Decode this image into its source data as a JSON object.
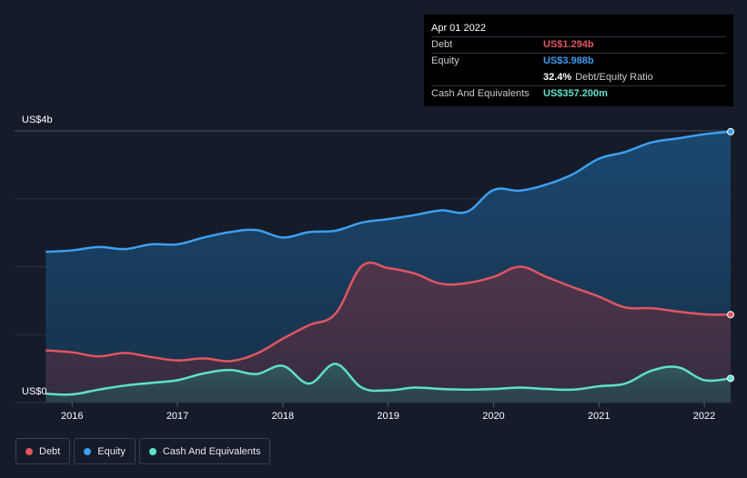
{
  "tooltip": {
    "date": "Apr 01 2022",
    "rows": [
      {
        "label": "Debt",
        "value": "US$1.294b",
        "color": "#e05561"
      },
      {
        "label": "Equity",
        "value": "US$3.988b",
        "color": "#3d9ff0"
      },
      {
        "label": "",
        "value": "32.4%",
        "extra": "Debt/Equity Ratio",
        "color": "#ffffff"
      },
      {
        "label": "Cash And Equivalents",
        "value": "US$357.200m",
        "color": "#5fe0cc"
      }
    ]
  },
  "legend": [
    {
      "label": "Debt",
      "color": "#e05561"
    },
    {
      "label": "Equity",
      "color": "#3d9ff0"
    },
    {
      "label": "Cash And Equivalents",
      "color": "#5fe0cc"
    }
  ],
  "chart_data": {
    "type": "area",
    "y_unit": "US$ billions",
    "ylim": [
      0,
      4
    ],
    "y_tick_labels": [
      {
        "value": 4,
        "label": "US$4b"
      },
      {
        "value": 0,
        "label": "US$0"
      }
    ],
    "x_ticks": [
      2016,
      2017,
      2018,
      2019,
      2020,
      2021,
      2022
    ],
    "xlim": [
      2015.73,
      2022.25
    ],
    "grid": true,
    "series": [
      {
        "name": "Equity",
        "color": "#3d9ff0",
        "points": [
          [
            2015.75,
            2.22
          ],
          [
            2016.0,
            2.24
          ],
          [
            2016.25,
            2.29
          ],
          [
            2016.5,
            2.26
          ],
          [
            2016.75,
            2.33
          ],
          [
            2017.0,
            2.33
          ],
          [
            2017.25,
            2.43
          ],
          [
            2017.5,
            2.51
          ],
          [
            2017.75,
            2.54
          ],
          [
            2018.0,
            2.43
          ],
          [
            2018.25,
            2.51
          ],
          [
            2018.5,
            2.53
          ],
          [
            2018.75,
            2.65
          ],
          [
            2019.0,
            2.7
          ],
          [
            2019.25,
            2.76
          ],
          [
            2019.5,
            2.83
          ],
          [
            2019.75,
            2.81
          ],
          [
            2020.0,
            3.13
          ],
          [
            2020.25,
            3.12
          ],
          [
            2020.5,
            3.21
          ],
          [
            2020.75,
            3.36
          ],
          [
            2021.0,
            3.59
          ],
          [
            2021.25,
            3.69
          ],
          [
            2021.5,
            3.83
          ],
          [
            2021.75,
            3.89
          ],
          [
            2022.0,
            3.95
          ],
          [
            2022.25,
            3.988
          ]
        ]
      },
      {
        "name": "Debt",
        "color": "#e05561",
        "points": [
          [
            2015.75,
            0.77
          ],
          [
            2016.0,
            0.74
          ],
          [
            2016.25,
            0.68
          ],
          [
            2016.5,
            0.73
          ],
          [
            2016.75,
            0.67
          ],
          [
            2017.0,
            0.62
          ],
          [
            2017.25,
            0.65
          ],
          [
            2017.5,
            0.61
          ],
          [
            2017.75,
            0.72
          ],
          [
            2018.0,
            0.94
          ],
          [
            2018.25,
            1.14
          ],
          [
            2018.5,
            1.31
          ],
          [
            2018.75,
            2.01
          ],
          [
            2019.0,
            1.98
          ],
          [
            2019.25,
            1.9
          ],
          [
            2019.5,
            1.75
          ],
          [
            2019.75,
            1.76
          ],
          [
            2020.0,
            1.85
          ],
          [
            2020.25,
            2.0
          ],
          [
            2020.5,
            1.85
          ],
          [
            2020.75,
            1.7
          ],
          [
            2021.0,
            1.56
          ],
          [
            2021.25,
            1.4
          ],
          [
            2021.5,
            1.39
          ],
          [
            2021.75,
            1.34
          ],
          [
            2022.0,
            1.3
          ],
          [
            2022.25,
            1.294
          ]
        ]
      },
      {
        "name": "Cash And Equivalents",
        "color": "#5fe0cc",
        "points": [
          [
            2015.75,
            0.13
          ],
          [
            2016.0,
            0.12
          ],
          [
            2016.25,
            0.19
          ],
          [
            2016.5,
            0.25
          ],
          [
            2016.75,
            0.29
          ],
          [
            2017.0,
            0.33
          ],
          [
            2017.25,
            0.43
          ],
          [
            2017.5,
            0.48
          ],
          [
            2017.75,
            0.42
          ],
          [
            2018.0,
            0.54
          ],
          [
            2018.25,
            0.28
          ],
          [
            2018.5,
            0.57
          ],
          [
            2018.75,
            0.22
          ],
          [
            2019.0,
            0.18
          ],
          [
            2019.25,
            0.22
          ],
          [
            2019.5,
            0.2
          ],
          [
            2019.75,
            0.19
          ],
          [
            2020.0,
            0.2
          ],
          [
            2020.25,
            0.22
          ],
          [
            2020.5,
            0.2
          ],
          [
            2020.75,
            0.19
          ],
          [
            2021.0,
            0.24
          ],
          [
            2021.25,
            0.28
          ],
          [
            2021.5,
            0.47
          ],
          [
            2021.75,
            0.52
          ],
          [
            2022.0,
            0.33
          ],
          [
            2022.25,
            0.357
          ]
        ]
      }
    ]
  }
}
